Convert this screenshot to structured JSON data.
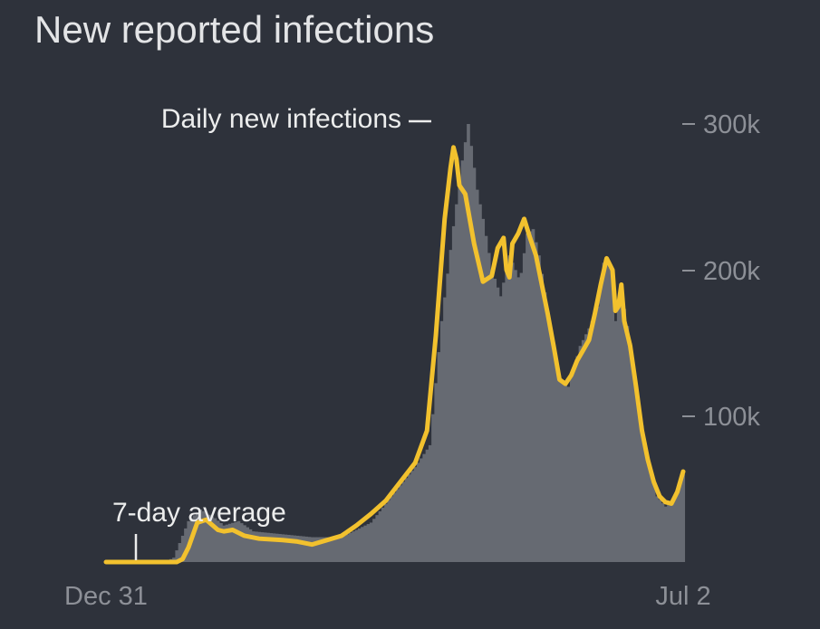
{
  "chart_data": {
    "type": "bar",
    "title": "New reported infections",
    "xlabel": "",
    "ylabel": "",
    "ylim": [
      0,
      300000
    ],
    "y_ticks": [
      {
        "value": 100000,
        "label": "100k"
      },
      {
        "value": 200000,
        "label": "200k"
      },
      {
        "value": 300000,
        "label": "300k"
      }
    ],
    "x_ticks": [
      "Dec 31",
      "Jul 2"
    ],
    "date_range": [
      "Dec 31",
      "Jul 2"
    ],
    "annotations": {
      "daily": "Daily new infections",
      "average": "7-day average"
    },
    "series": [
      {
        "name": "Daily new infections",
        "type": "bar",
        "color": "#666a72"
      },
      {
        "name": "7-day average",
        "type": "line",
        "color": "#f2c12e"
      }
    ],
    "daily_keypoints": [
      [
        0,
        0
      ],
      [
        20,
        0
      ],
      [
        23,
        3000
      ],
      [
        28,
        28000
      ],
      [
        32,
        36000
      ],
      [
        37,
        30000
      ],
      [
        40,
        25000
      ],
      [
        45,
        28000
      ],
      [
        50,
        21000
      ],
      [
        60,
        19000
      ],
      [
        70,
        17000
      ],
      [
        80,
        17000
      ],
      [
        90,
        27000
      ],
      [
        97,
        45000
      ],
      [
        105,
        65000
      ],
      [
        110,
        80000
      ],
      [
        114,
        165000
      ],
      [
        118,
        230000
      ],
      [
        121,
        275000
      ],
      [
        123,
        300000
      ],
      [
        126,
        255000
      ],
      [
        128,
        235000
      ],
      [
        131,
        200000
      ],
      [
        134,
        182000
      ],
      [
        137,
        210000
      ],
      [
        140,
        195000
      ],
      [
        141,
        198000
      ],
      [
        143,
        225000
      ],
      [
        145,
        228000
      ],
      [
        147,
        210000
      ],
      [
        150,
        172000
      ],
      [
        154,
        125000
      ],
      [
        157,
        120000
      ],
      [
        161,
        148000
      ],
      [
        164,
        160000
      ],
      [
        167,
        175000
      ],
      [
        169,
        205000
      ],
      [
        172,
        200000
      ],
      [
        173,
        165000
      ],
      [
        175,
        185000
      ],
      [
        178,
        150000
      ],
      [
        181,
        105000
      ],
      [
        184,
        70000
      ],
      [
        187,
        45000
      ],
      [
        190,
        38000
      ],
      [
        192,
        40000
      ],
      [
        194,
        50000
      ],
      [
        196,
        60000
      ]
    ],
    "average_keypoints": [
      [
        0,
        0
      ],
      [
        24,
        0
      ],
      [
        26,
        2000
      ],
      [
        28,
        10000
      ],
      [
        31,
        27000
      ],
      [
        34,
        29000
      ],
      [
        38,
        22000
      ],
      [
        40,
        21000
      ],
      [
        43,
        22000
      ],
      [
        47,
        18000
      ],
      [
        52,
        16000
      ],
      [
        60,
        15000
      ],
      [
        65,
        14000
      ],
      [
        70,
        12000
      ],
      [
        75,
        15000
      ],
      [
        80,
        18000
      ],
      [
        85,
        25000
      ],
      [
        90,
        33000
      ],
      [
        95,
        42000
      ],
      [
        100,
        55000
      ],
      [
        105,
        68000
      ],
      [
        109,
        90000
      ],
      [
        112,
        155000
      ],
      [
        115,
        235000
      ],
      [
        117,
        270000
      ],
      [
        118,
        284000
      ],
      [
        119,
        276000
      ],
      [
        120,
        258000
      ],
      [
        122,
        252000
      ],
      [
        125,
        218000
      ],
      [
        128,
        192000
      ],
      [
        131,
        196000
      ],
      [
        133,
        215000
      ],
      [
        135,
        222000
      ],
      [
        136,
        200000
      ],
      [
        137,
        195000
      ],
      [
        138,
        218000
      ],
      [
        140,
        225000
      ],
      [
        142,
        235000
      ],
      [
        144,
        222000
      ],
      [
        146,
        210000
      ],
      [
        148,
        190000
      ],
      [
        150,
        170000
      ],
      [
        152,
        148000
      ],
      [
        154,
        125000
      ],
      [
        156,
        122000
      ],
      [
        158,
        128000
      ],
      [
        160,
        138000
      ],
      [
        162,
        145000
      ],
      [
        164,
        152000
      ],
      [
        166,
        170000
      ],
      [
        168,
        190000
      ],
      [
        170,
        208000
      ],
      [
        172,
        200000
      ],
      [
        173,
        172000
      ],
      [
        174,
        175000
      ],
      [
        175,
        190000
      ],
      [
        176,
        165000
      ],
      [
        178,
        148000
      ],
      [
        180,
        120000
      ],
      [
        182,
        90000
      ],
      [
        184,
        70000
      ],
      [
        186,
        55000
      ],
      [
        188,
        45000
      ],
      [
        190,
        41000
      ],
      [
        192,
        40000
      ],
      [
        194,
        48000
      ],
      [
        196,
        62000
      ]
    ]
  }
}
